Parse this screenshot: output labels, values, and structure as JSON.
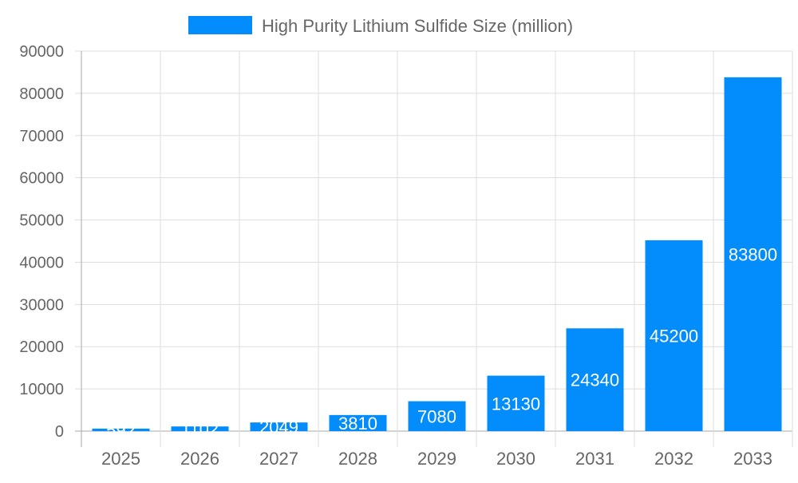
{
  "chart_data": {
    "type": "bar",
    "categories": [
      "2025",
      "2026",
      "2027",
      "2028",
      "2029",
      "2030",
      "2031",
      "2032",
      "2033"
    ],
    "series": [
      {
        "name": "High Purity Lithium Sulfide Size (million)",
        "values": [
          592,
          1102,
          2049,
          3810,
          7080,
          13130,
          24340,
          45200,
          83800
        ],
        "color": "#038cfc"
      }
    ],
    "ylim": [
      0,
      90000
    ],
    "yticks": [
      0,
      10000,
      20000,
      30000,
      40000,
      50000,
      60000,
      70000,
      80000,
      90000
    ],
    "grid": true,
    "legend": "top",
    "data_labels": true
  }
}
